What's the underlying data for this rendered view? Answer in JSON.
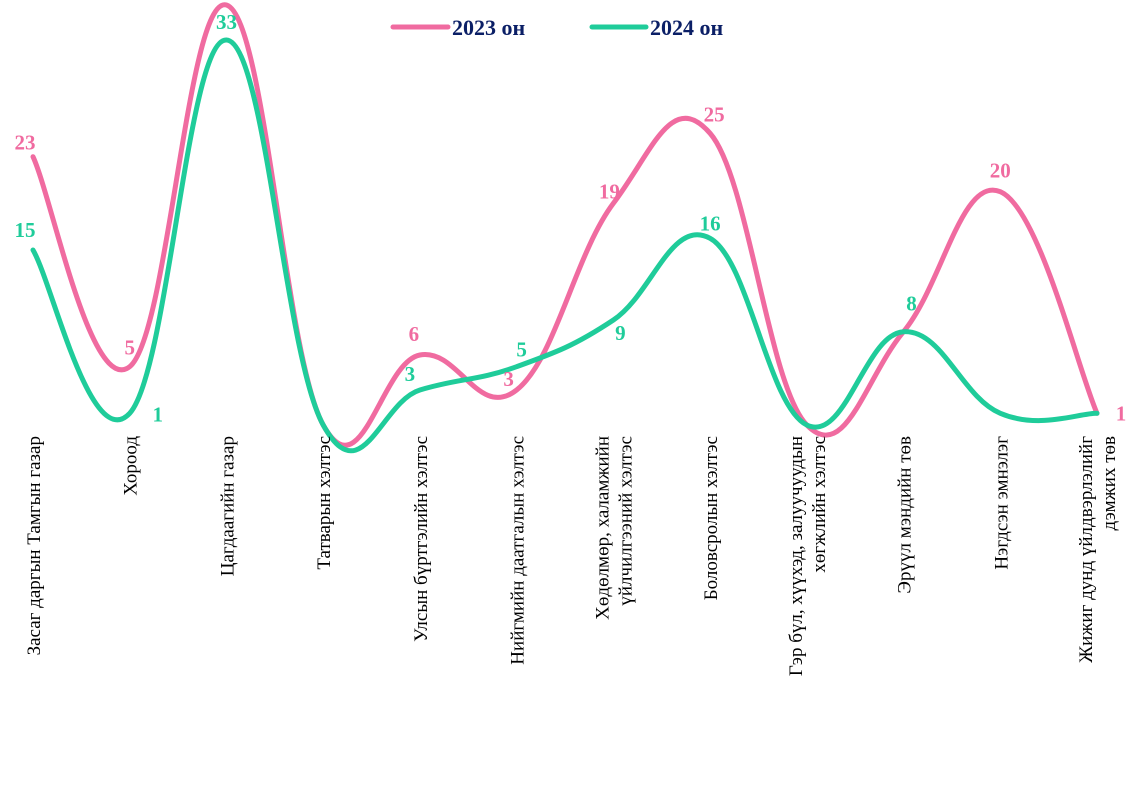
{
  "chart_data": {
    "type": "line",
    "title": "",
    "xlabel": "",
    "ylabel": "",
    "ylim": [
      0,
      36
    ],
    "grid": false,
    "legend_position": "top-center",
    "categories": [
      "Засаг даргын Тамгын газар",
      "Хороод",
      "Цагдаагийн газар",
      "Татварын хэлтэс",
      "Улсын бүртгэлийн хэлтэс",
      "Нийгмийн даатгалын хэлтэс",
      "Хөдөлмөр, халамжийн үйлчилгээний хэлтэс",
      "Боловсролын хэлтэс",
      "Гэр бүл, хүүхэд, залуучуудын хөгжлийн хэлтэс",
      "Эрүүл мэндийн төв",
      "Нэгдсэн эмнэлэг",
      "Жижиг дунд үйлдвэрлэлийг дэмжих төв"
    ],
    "series": [
      {
        "name": "2023 он",
        "color": "#f06ba0",
        "values": [
          23,
          5,
          36,
          0,
          6,
          3,
          19,
          25,
          0,
          8,
          20,
          1
        ]
      },
      {
        "name": "2024 он",
        "color": "#1fcc9a",
        "values": [
          15,
          1,
          33,
          0,
          3,
          5,
          9,
          16,
          0,
          8,
          1,
          1
        ]
      }
    ],
    "data_labels": [
      {
        "series": 0,
        "index": 0,
        "text": "23"
      },
      {
        "series": 0,
        "index": 1,
        "text": "5"
      },
      {
        "series": 0,
        "index": 4,
        "text": "6"
      },
      {
        "series": 0,
        "index": 5,
        "text": "3"
      },
      {
        "series": 0,
        "index": 6,
        "text": "19"
      },
      {
        "series": 0,
        "index": 7,
        "text": "25"
      },
      {
        "series": 0,
        "index": 10,
        "text": "20"
      },
      {
        "series": 0,
        "index": 11,
        "text": "1"
      },
      {
        "series": 1,
        "index": 0,
        "text": "15"
      },
      {
        "series": 1,
        "index": 1,
        "text": "1"
      },
      {
        "series": 1,
        "index": 2,
        "text": "33"
      },
      {
        "series": 1,
        "index": 4,
        "text": "3"
      },
      {
        "series": 1,
        "index": 5,
        "text": "5"
      },
      {
        "series": 1,
        "index": 6,
        "text": "9"
      },
      {
        "series": 1,
        "index": 7,
        "text": "16"
      },
      {
        "series": 1,
        "index": 9,
        "text": "8"
      }
    ]
  }
}
